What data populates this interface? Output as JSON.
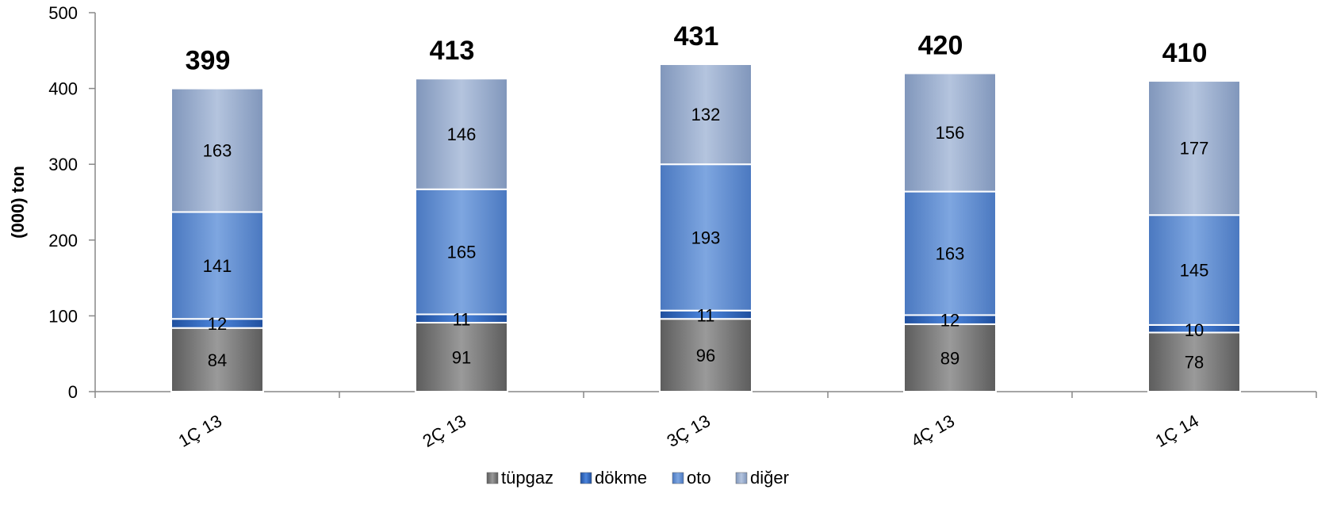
{
  "chart_data": {
    "type": "bar",
    "stacked": true,
    "categories": [
      "1Ç 13",
      "2Ç 13",
      "3Ç 13",
      "4Ç 13",
      "1Ç 14"
    ],
    "series": [
      {
        "name": "tüpgaz",
        "values": [
          84,
          91,
          96,
          89,
          78
        ],
        "color": "#8a8a8a"
      },
      {
        "name": "dökme",
        "values": [
          12,
          11,
          11,
          12,
          10
        ],
        "color": "#3f74c9"
      },
      {
        "name": "oto",
        "values": [
          141,
          165,
          193,
          163,
          145
        ],
        "color": "#6e9ad6"
      },
      {
        "name": "diğer",
        "values": [
          163,
          146,
          132,
          156,
          177
        ],
        "color": "#9fb3d4"
      }
    ],
    "totals": [
      "399",
      "413",
      "431",
      "420",
      "410"
    ],
    "ylabel": "(000)  ton",
    "ylim": [
      0,
      500
    ],
    "yticks": [
      "0",
      "100",
      "200",
      "300",
      "400",
      "500"
    ],
    "grid": false,
    "legend": "bottom"
  }
}
